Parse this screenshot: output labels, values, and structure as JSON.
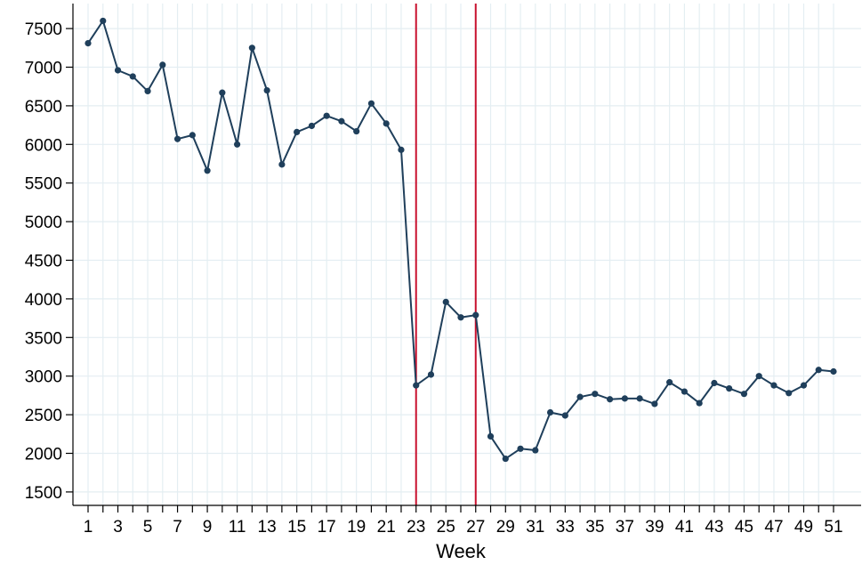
{
  "chart_data": {
    "type": "line",
    "title": "",
    "xlabel": "Week",
    "ylabel": "",
    "x": [
      1,
      2,
      3,
      4,
      5,
      6,
      7,
      8,
      9,
      10,
      11,
      12,
      13,
      14,
      15,
      16,
      17,
      18,
      19,
      20,
      21,
      22,
      23,
      24,
      25,
      26,
      27,
      28,
      29,
      30,
      31,
      32,
      33,
      34,
      35,
      36,
      37,
      38,
      39,
      40,
      41,
      42,
      43,
      44,
      45,
      46,
      47,
      48,
      49,
      50,
      51
    ],
    "values": [
      7310,
      7600,
      6960,
      6880,
      6690,
      7030,
      6070,
      6120,
      5660,
      6670,
      6000,
      7250,
      6700,
      5740,
      6160,
      6240,
      6370,
      6300,
      6170,
      6530,
      6270,
      5930,
      2880,
      3020,
      3960,
      3760,
      3790,
      2220,
      1930,
      2060,
      2040,
      2530,
      2490,
      2730,
      2770,
      2700,
      2710,
      2710,
      2640,
      2920,
      2800,
      2650,
      2910,
      2840,
      2770,
      3000,
      2880,
      2780,
      2880,
      3080,
      3060
    ],
    "x_ticks": [
      "1",
      "3",
      "5",
      "7",
      "9",
      "11",
      "13",
      "15",
      "17",
      "19",
      "21",
      "23",
      "25",
      "27",
      "29",
      "31",
      "33",
      "35",
      "37",
      "39",
      "41",
      "43",
      "45",
      "47",
      "49",
      "51"
    ],
    "y_ticks": [
      "1500",
      "2000",
      "2500",
      "3000",
      "3500",
      "4000",
      "4500",
      "5000",
      "5500",
      "6000",
      "6500",
      "7000",
      "7500"
    ],
    "ylim": [
      1500,
      7500
    ],
    "xlim": [
      1,
      51
    ],
    "grid": true,
    "vlines": [
      23,
      27
    ],
    "colors": {
      "series": "#1f3f5b",
      "vline": "#c8102e",
      "grid": "#e4eef2",
      "axis": "#000000"
    }
  }
}
